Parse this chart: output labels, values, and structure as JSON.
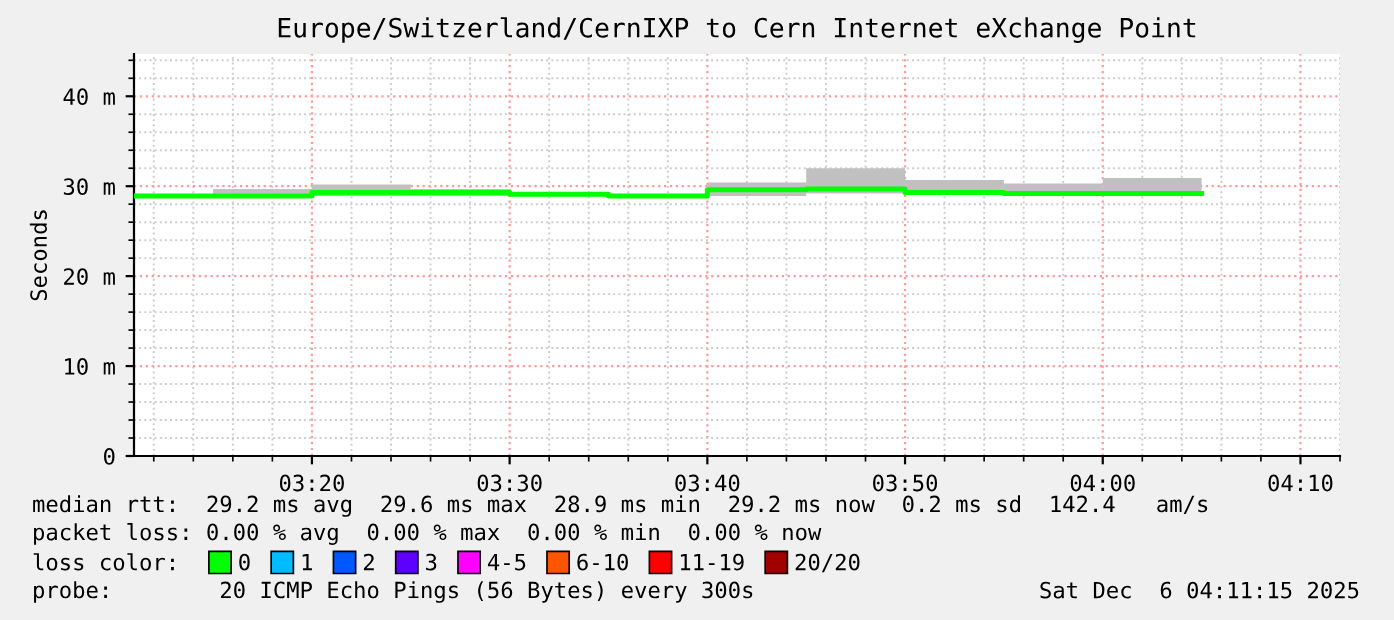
{
  "chart_data": {
    "type": "step",
    "title": "Europe/Switzerland/CernIXP to Cern Internet eXchange Point",
    "ylabel": "Seconds",
    "x": [
      "2025-12-06T03:11",
      "2025-12-06T03:15",
      "2025-12-06T03:20",
      "2025-12-06T03:25",
      "2025-12-06T03:30",
      "2025-12-06T03:35",
      "2025-12-06T03:40",
      "2025-12-06T03:45",
      "2025-12-06T03:50",
      "2025-12-06T03:55",
      "2025-12-06T04:00",
      "2025-12-06T04:05"
    ],
    "series": [
      {
        "name": "0",
        "color": "#00ff00",
        "values": [
          28.9,
          28.9,
          29.3,
          29.3,
          29.1,
          28.9,
          29.6,
          29.7,
          29.3,
          29.2,
          29.2,
          29.2
        ],
        "lower": [
          null,
          28.9,
          28.9,
          28.9,
          null,
          null,
          28.9,
          29.2,
          29.2,
          29.1,
          29.1,
          29.1
        ],
        "upper": [
          null,
          29.7,
          30.2,
          29.7,
          null,
          null,
          30.4,
          32.0,
          30.7,
          30.3,
          30.9,
          30.9
        ]
      },
      {
        "name": "1",
        "color": "#00bbff",
        "values": [
          null,
          null,
          null,
          null,
          null,
          null,
          null,
          null,
          null,
          null,
          null,
          null
        ]
      },
      {
        "name": "2",
        "color": "#0059ff",
        "values": [
          null,
          null,
          null,
          null,
          null,
          null,
          null,
          null,
          null,
          null,
          null,
          null
        ]
      },
      {
        "name": "3",
        "color": "#5e00ff",
        "values": [
          null,
          null,
          null,
          null,
          null,
          null,
          null,
          null,
          null,
          null,
          null,
          null
        ]
      },
      {
        "name": "4-5",
        "color": "#ff00ff",
        "values": [
          null,
          null,
          null,
          null,
          null,
          null,
          null,
          null,
          null,
          null,
          null,
          null
        ]
      },
      {
        "name": "6-10",
        "color": "#ff5500",
        "values": [
          null,
          null,
          null,
          null,
          null,
          null,
          null,
          null,
          null,
          null,
          null,
          null
        ]
      },
      {
        "name": "11-19",
        "color": "#ff0000",
        "values": [
          null,
          null,
          null,
          null,
          null,
          null,
          null,
          null,
          null,
          null,
          null,
          null
        ]
      },
      {
        "name": "20/20",
        "color": "#a10000",
        "values": [
          null,
          null,
          null,
          null,
          null,
          null,
          null,
          null,
          null,
          null,
          null,
          null
        ]
      }
    ],
    "xlim": [
      "2025-12-06T03:11",
      "2025-12-06T04:12"
    ],
    "xticks": [
      {
        "value": "2025-12-06T03:20",
        "label": "03:20"
      },
      {
        "value": "2025-12-06T03:30",
        "label": "03:30"
      },
      {
        "value": "2025-12-06T03:40",
        "label": "03:40"
      },
      {
        "value": "2025-12-06T03:50",
        "label": "03:50"
      },
      {
        "value": "2025-12-06T04:00",
        "label": "04:00"
      },
      {
        "value": "2025-12-06T04:10",
        "label": "04:10"
      }
    ],
    "ylim": [
      0,
      44.7
    ],
    "yticks": [
      0,
      {
        "value": 10,
        "label": "10 m"
      },
      {
        "value": 20,
        "label": "20 m"
      },
      {
        "value": 30,
        "label": "30 m"
      },
      {
        "value": 40,
        "label": "40 m"
      }
    ],
    "grid": true,
    "legend": "bottom",
    "annotations": [
      "median rtt:  29.2 ms avg  29.6 ms max  28.9 ms min  29.2 ms now  0.2 ms sd  142.4   am/s",
      "packet loss: 0.00 % avg  0.00 % max  0.00 % min  0.00 % now",
      "loss color:",
      "probe:        20 ICMP Echo Pings (56 Bytes) every 300s",
      "Sat Dec  6 04:11:15 2025"
    ]
  }
}
